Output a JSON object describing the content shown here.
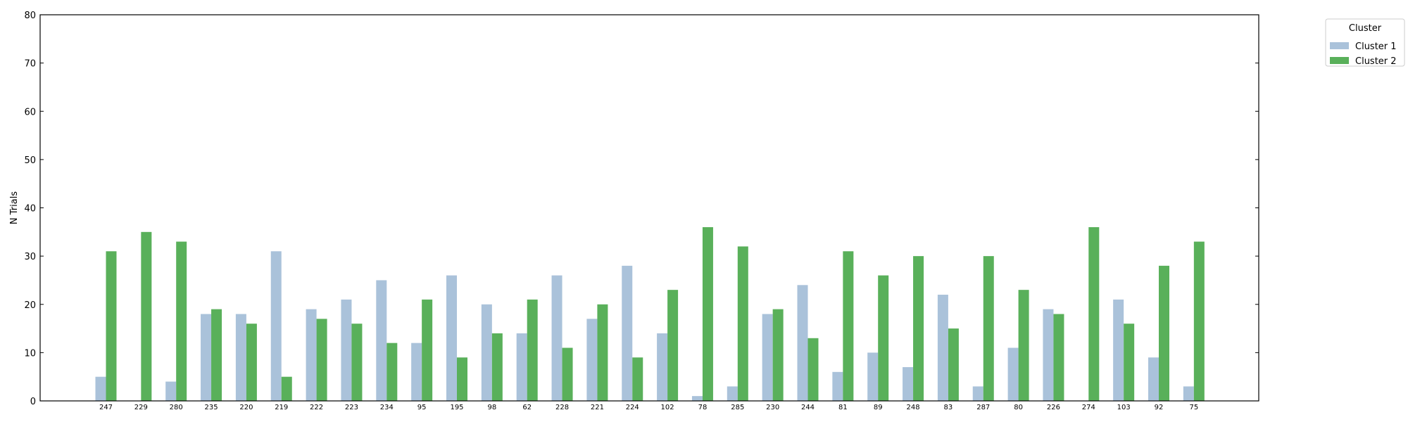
{
  "chart_data": {
    "type": "bar",
    "title": "",
    "xlabel": "",
    "ylabel": "N Trials",
    "ylim": [
      0,
      80
    ],
    "yticks": [
      0,
      10,
      20,
      30,
      40,
      50,
      60,
      70,
      80
    ],
    "grid": false,
    "legend": {
      "title": "Cluster",
      "placement": "upper right, outside plot"
    },
    "categories": [
      "247",
      "229",
      "280",
      "235",
      "220",
      "219",
      "222",
      "223",
      "234",
      "95",
      "195",
      "98",
      "62",
      "228",
      "221",
      "224",
      "102",
      "78",
      "285",
      "230",
      "244",
      "81",
      "89",
      "248",
      "83",
      "287",
      "80",
      "226",
      "274",
      "103",
      "92",
      "75"
    ],
    "series": [
      {
        "name": "Cluster 1",
        "color": "#aac2da",
        "values": [
          5,
          0,
          4,
          18,
          18,
          31,
          19,
          21,
          25,
          12,
          26,
          20,
          14,
          26,
          17,
          28,
          14,
          1,
          3,
          18,
          24,
          6,
          10,
          7,
          22,
          3,
          11,
          19,
          0,
          21,
          9,
          3
        ]
      },
      {
        "name": "Cluster 2",
        "color": "#59b05a",
        "values": [
          31,
          35,
          33,
          19,
          16,
          5,
          17,
          16,
          12,
          21,
          9,
          14,
          21,
          11,
          20,
          9,
          23,
          36,
          32,
          19,
          13,
          31,
          26,
          30,
          15,
          30,
          23,
          18,
          36,
          16,
          28,
          33
        ]
      }
    ]
  }
}
